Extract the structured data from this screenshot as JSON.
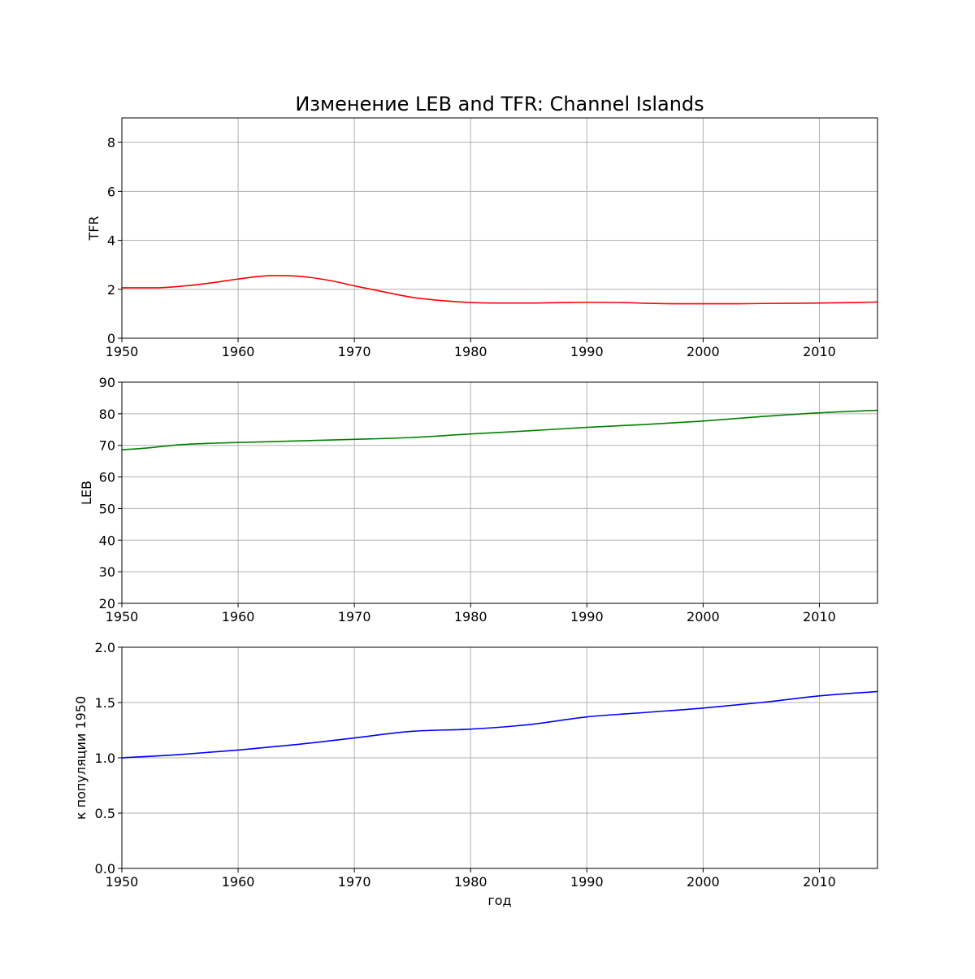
{
  "figure": {
    "title": "Изменение LEB and TFR: Channel Islands"
  },
  "chart_data": [
    {
      "type": "line",
      "ylabel": "TFR",
      "xlabel": "",
      "xlim": [
        1950,
        2015
      ],
      "ylim": [
        0,
        9
      ],
      "xticks": [
        1950,
        1960,
        1970,
        1980,
        1990,
        2000,
        2010
      ],
      "yticks": [
        0,
        2,
        4,
        6,
        8
      ],
      "ytick_labels": [
        "0",
        "2",
        "4",
        "6",
        "8"
      ],
      "grid": true,
      "series": [
        {
          "color": "#ff0000",
          "x": [
            1950,
            1953,
            1955,
            1958,
            1960,
            1963,
            1965,
            1968,
            1970,
            1973,
            1975,
            1978,
            1980,
            1983,
            1985,
            1988,
            1990,
            1993,
            1995,
            1998,
            2000,
            2003,
            2005,
            2008,
            2010,
            2013,
            2015
          ],
          "y": [
            2.06,
            2.06,
            2.12,
            2.28,
            2.42,
            2.56,
            2.54,
            2.35,
            2.14,
            1.85,
            1.67,
            1.52,
            1.46,
            1.44,
            1.44,
            1.46,
            1.47,
            1.46,
            1.43,
            1.41,
            1.41,
            1.41,
            1.42,
            1.43,
            1.44,
            1.46,
            1.48
          ]
        }
      ]
    },
    {
      "type": "line",
      "ylabel": "LEB",
      "xlabel": "",
      "xlim": [
        1950,
        2015
      ],
      "ylim": [
        20,
        90
      ],
      "xticks": [
        1950,
        1960,
        1970,
        1980,
        1990,
        2000,
        2010
      ],
      "yticks": [
        20,
        30,
        40,
        50,
        60,
        70,
        80,
        90
      ],
      "ytick_labels": [
        "20",
        "30",
        "40",
        "50",
        "60",
        "70",
        "80",
        "90"
      ],
      "grid": true,
      "series": [
        {
          "color": "#008000",
          "x": [
            1950,
            1952,
            1955,
            1958,
            1960,
            1965,
            1970,
            1975,
            1980,
            1985,
            1990,
            1995,
            2000,
            2005,
            2010,
            2015
          ],
          "y": [
            68.6,
            69.1,
            70.2,
            70.7,
            70.9,
            71.4,
            71.9,
            72.5,
            73.6,
            74.6,
            75.7,
            76.6,
            77.7,
            79.1,
            80.3,
            81.1
          ]
        }
      ]
    },
    {
      "type": "line",
      "ylabel": "к популяции 1950",
      "xlabel": "год",
      "xlim": [
        1950,
        2015
      ],
      "ylim": [
        0,
        2
      ],
      "xticks": [
        1950,
        1960,
        1970,
        1980,
        1990,
        2000,
        2010
      ],
      "yticks": [
        0,
        0.5,
        1,
        1.5,
        2
      ],
      "ytick_labels": [
        "0.0",
        "0.5",
        "1.0",
        "1.5",
        "2.0"
      ],
      "grid": true,
      "series": [
        {
          "color": "#0000ff",
          "x": [
            1950,
            1955,
            1960,
            1965,
            1970,
            1975,
            1980,
            1985,
            1990,
            1995,
            2000,
            2005,
            2010,
            2015
          ],
          "y": [
            1.0,
            1.03,
            1.07,
            1.12,
            1.18,
            1.24,
            1.26,
            1.3,
            1.37,
            1.41,
            1.45,
            1.5,
            1.56,
            1.6
          ]
        }
      ]
    }
  ]
}
